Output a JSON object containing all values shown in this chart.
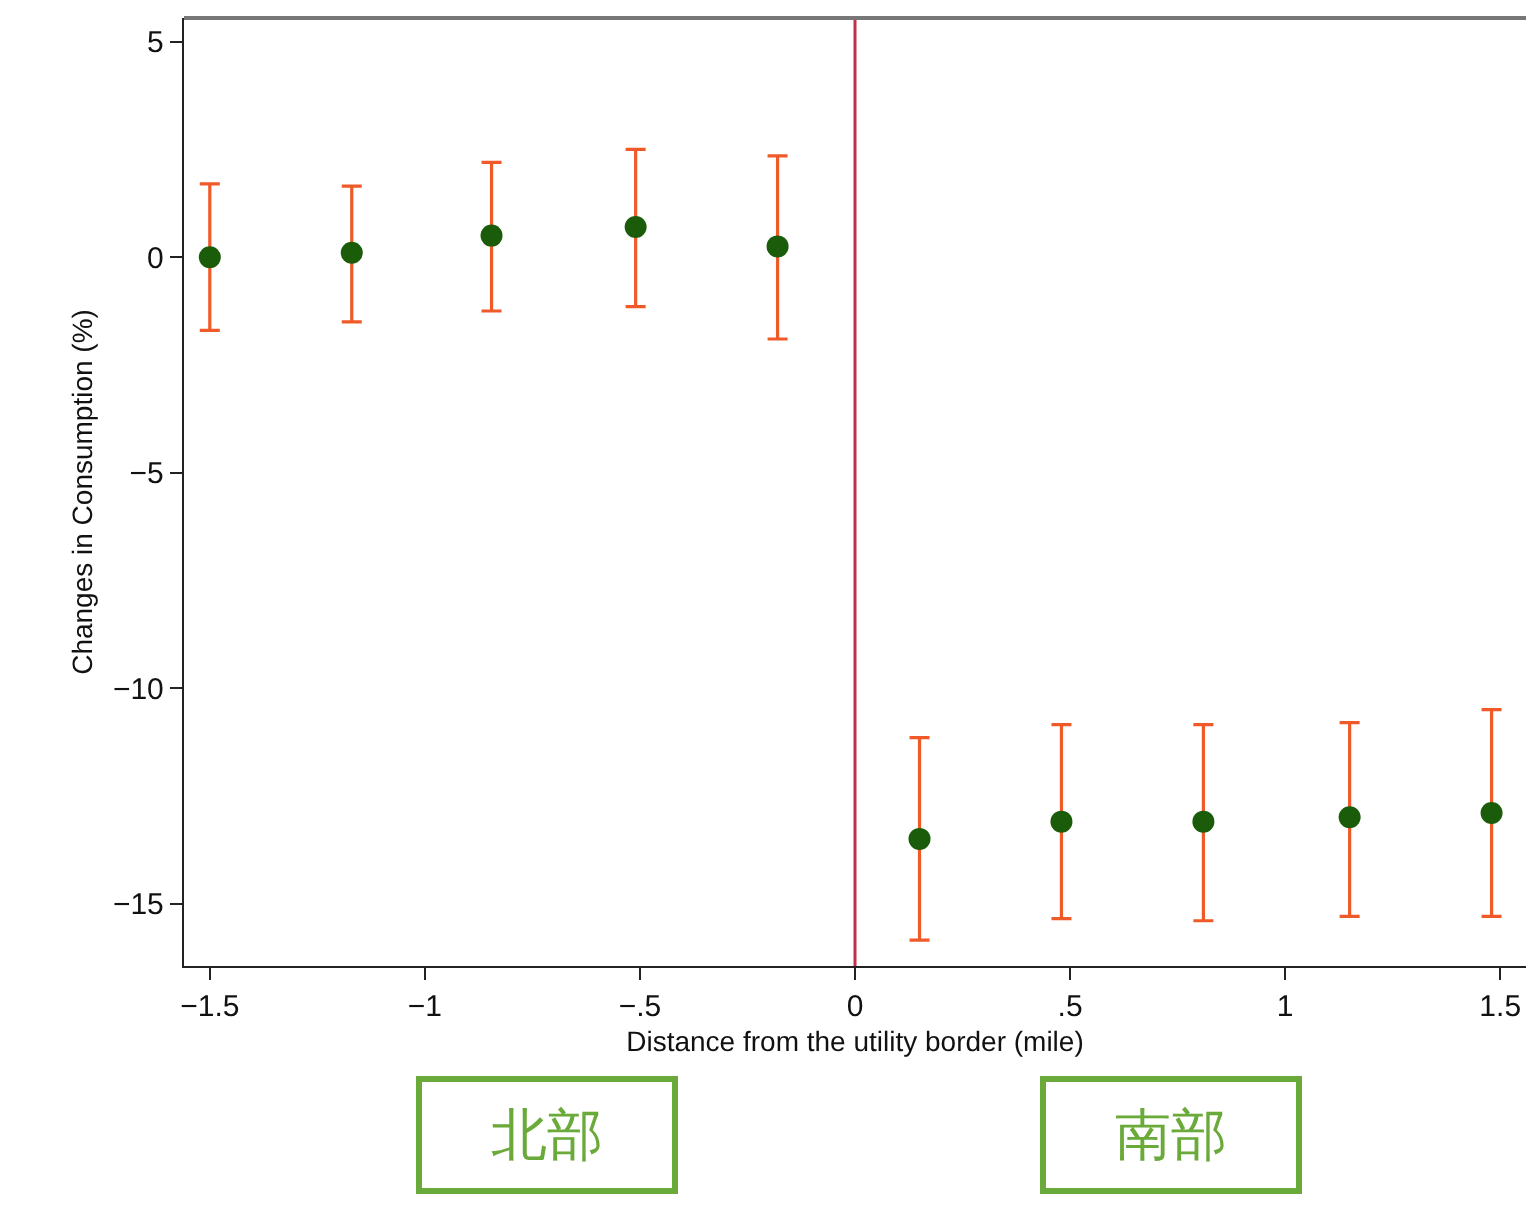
{
  "chart_data": {
    "type": "scatter",
    "xlabel": "Distance from the utility border (mile)",
    "ylabel": "Changes in Consumption (%)",
    "x": [
      -1.5,
      -1.17,
      -0.845,
      -0.51,
      -0.18,
      0.15,
      0.48,
      0.81,
      1.15,
      1.48
    ],
    "series": [
      {
        "color": "#1a5c0a",
        "values": [
          0,
          0.1,
          0.5,
          0.7,
          0.25,
          -13.5,
          -13.1,
          -13.1,
          -13.0,
          -12.9
        ],
        "errors": [
          [
            -1.7,
            1.7
          ],
          [
            -1.5,
            1.65
          ],
          [
            -1.25,
            2.2
          ],
          [
            -1.15,
            2.5
          ],
          [
            -1.9,
            2.35
          ],
          [
            -15.85,
            -11.15
          ],
          [
            -15.35,
            -10.85
          ],
          [
            -15.4,
            -10.85
          ],
          [
            -15.3,
            -10.8
          ],
          [
            -15.3,
            -10.5
          ]
        ]
      }
    ],
    "marker": "circle",
    "xlim": [
      -1.56,
      1.56
    ],
    "xticks": [
      {
        "value": -1.5,
        "label": "−1.5"
      },
      {
        "value": -1,
        "label": "−1"
      },
      {
        "value": -0.5,
        "label": "−.5"
      },
      0,
      {
        "value": 0.5,
        "label": ".5"
      },
      1,
      {
        "value": 1.5,
        "label": "1.5"
      }
    ],
    "ylim": [
      -16.45,
      5.55
    ],
    "yticks": [
      {
        "value": -15,
        "label": "−15"
      },
      {
        "value": -10,
        "label": "−10"
      },
      {
        "value": -5,
        "label": "−5"
      },
      0,
      5
    ],
    "ref_lines": [
      {
        "axis": "x",
        "value": 0,
        "color": "#c0304a"
      }
    ],
    "annotations": [
      "北部",
      "南部"
    ],
    "grid": false
  }
}
